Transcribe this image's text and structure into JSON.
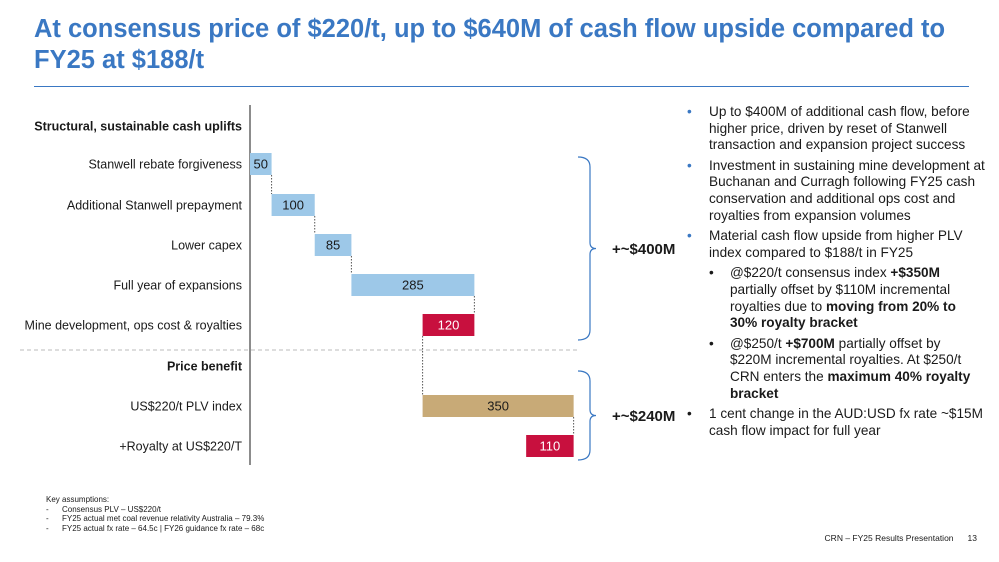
{
  "title": "At consensus price of $220/t, up to $640M of cash flow upside compared to FY25 at $188/t",
  "chart_data": {
    "type": "bar",
    "style": "waterfall",
    "sections": [
      {
        "label": "Structural, sustainable cash uplifts",
        "bracket_label": "+~$400M"
      },
      {
        "label": "Price benefit",
        "bracket_label": "+~$240M"
      }
    ],
    "items": [
      {
        "label": "Stanwell rebate forgiveness",
        "value": 50,
        "direction": "up",
        "section": 0
      },
      {
        "label": "Additional Stanwell prepayment",
        "value": 100,
        "direction": "up",
        "section": 0
      },
      {
        "label": "Lower capex",
        "value": 85,
        "direction": "up",
        "section": 0
      },
      {
        "label": "Full year of expansions",
        "value": 285,
        "direction": "up",
        "section": 0
      },
      {
        "label": "Mine development, ops cost & royalties",
        "value": 120,
        "direction": "down",
        "section": 0
      },
      {
        "label": "US$220/t PLV index",
        "value": 350,
        "direction": "up",
        "section": 1
      },
      {
        "label": "+Royalty at US$220/T",
        "value": 110,
        "direction": "down",
        "section": 1
      }
    ],
    "colors": {
      "uplift": "#9dc8e8",
      "reduction": "#c8103e",
      "price": "#c8aa77"
    },
    "legend": "none"
  },
  "bullets": {
    "b1": "Up to $400M of additional cash flow, before higher price, driven by reset of Stanwell transaction and expansion project success",
    "b2": "Investment in sustaining mine development at Buchanan and Curragh following FY25 cash conservation and additional ops cost and royalties from expansion volumes",
    "b3": "Material cash flow upside from higher PLV index compared to $188/t in FY25",
    "s1_a": "@$220/t consensus index ",
    "s1_b": "+$350M",
    "s1_c": " partially offset by $110M incremental royalties due to ",
    "s1_d": "moving from 20% to 30% royalty bracket",
    "s2_a": "@$250/t ",
    "s2_b": "+$700M",
    "s2_c": " partially offset by $220M incremental royalties.  At $250/t CRN enters the ",
    "s2_d": "maximum 40% royalty bracket",
    "b4": "1 cent change in the AUD:USD fx rate ~$15M cash flow impact for full year"
  },
  "assumptions": {
    "heading": "Key assumptions:",
    "items": [
      "Consensus PLV – US$220/t",
      "FY25 actual met coal revenue relativity Australia – 79.3%",
      "FY25 actual fx rate – 64.5c | FY26 guidance fx rate – 68c"
    ]
  },
  "footer": {
    "text": "CRN – FY25 Results Presentation",
    "page": "13"
  }
}
